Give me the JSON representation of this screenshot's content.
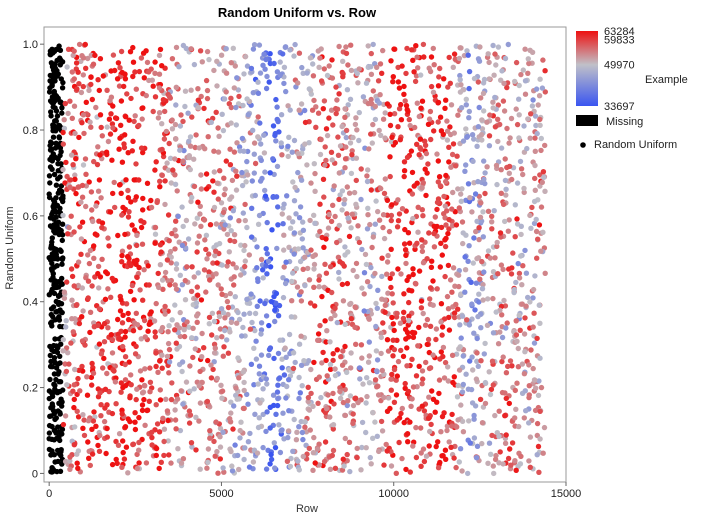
{
  "chart_data": {
    "type": "scatter",
    "title": "Random Uniform vs. Row",
    "xlabel": "Row",
    "ylabel": "Random Uniform",
    "xlim": [
      -150,
      15000
    ],
    "ylim": [
      -0.02,
      1.04
    ],
    "x_ticks": [
      0,
      5000,
      10000,
      15000
    ],
    "x_tick_labels": [
      "0",
      "5000",
      "10000",
      "15000"
    ],
    "y_ticks": [
      0,
      0.2,
      0.4,
      0.6,
      0.8,
      1.0
    ],
    "y_tick_labels": [
      "0",
      "0.2",
      "0.4",
      "0.6",
      "0.8",
      "1.0"
    ],
    "grid": false,
    "color_variable": "Example",
    "color_scale": {
      "stops": [
        {
          "value": 33697,
          "color": "#3a55f0"
        },
        {
          "value": 49970,
          "color": "#c0c0c8"
        },
        {
          "value": 63284,
          "color": "#ee1111"
        }
      ],
      "labels": [
        "63284",
        "59833",
        "49970",
        "33697"
      ],
      "label_values": [
        63284,
        59833,
        49970,
        33697
      ]
    },
    "missing": {
      "label": "Missing",
      "color": "#000000",
      "x_range": [
        0,
        400
      ]
    },
    "legend": {
      "position": "right",
      "series_label": "Random Uniform"
    },
    "x_range": [
      0,
      14400
    ],
    "y_range": [
      0,
      1
    ],
    "band_profile": [
      {
        "x": 400,
        "value": 56000
      },
      {
        "x": 1200,
        "value": 59000
      },
      {
        "x": 1800,
        "value": 61000
      },
      {
        "x": 2200,
        "value": 62000
      },
      {
        "x": 2800,
        "value": 60000
      },
      {
        "x": 3300,
        "value": 58500
      },
      {
        "x": 3900,
        "value": 50500
      },
      {
        "x": 4400,
        "value": 57000
      },
      {
        "x": 5000,
        "value": 53000
      },
      {
        "x": 5600,
        "value": 51000
      },
      {
        "x": 6200,
        "value": 43000
      },
      {
        "x": 6500,
        "value": 36000
      },
      {
        "x": 6900,
        "value": 48500
      },
      {
        "x": 7400,
        "value": 49500
      },
      {
        "x": 8000,
        "value": 59000
      },
      {
        "x": 8500,
        "value": 55000
      },
      {
        "x": 9000,
        "value": 52000
      },
      {
        "x": 9500,
        "value": 50500
      },
      {
        "x": 9900,
        "value": 61000
      },
      {
        "x": 10400,
        "value": 62500
      },
      {
        "x": 10800,
        "value": 58000
      },
      {
        "x": 11300,
        "value": 62500
      },
      {
        "x": 11800,
        "value": 56000
      },
      {
        "x": 12200,
        "value": 44000
      },
      {
        "x": 12700,
        "value": 52500
      },
      {
        "x": 13300,
        "value": 55000
      },
      {
        "x": 13900,
        "value": 51000
      },
      {
        "x": 14400,
        "value": 54000
      }
    ]
  }
}
